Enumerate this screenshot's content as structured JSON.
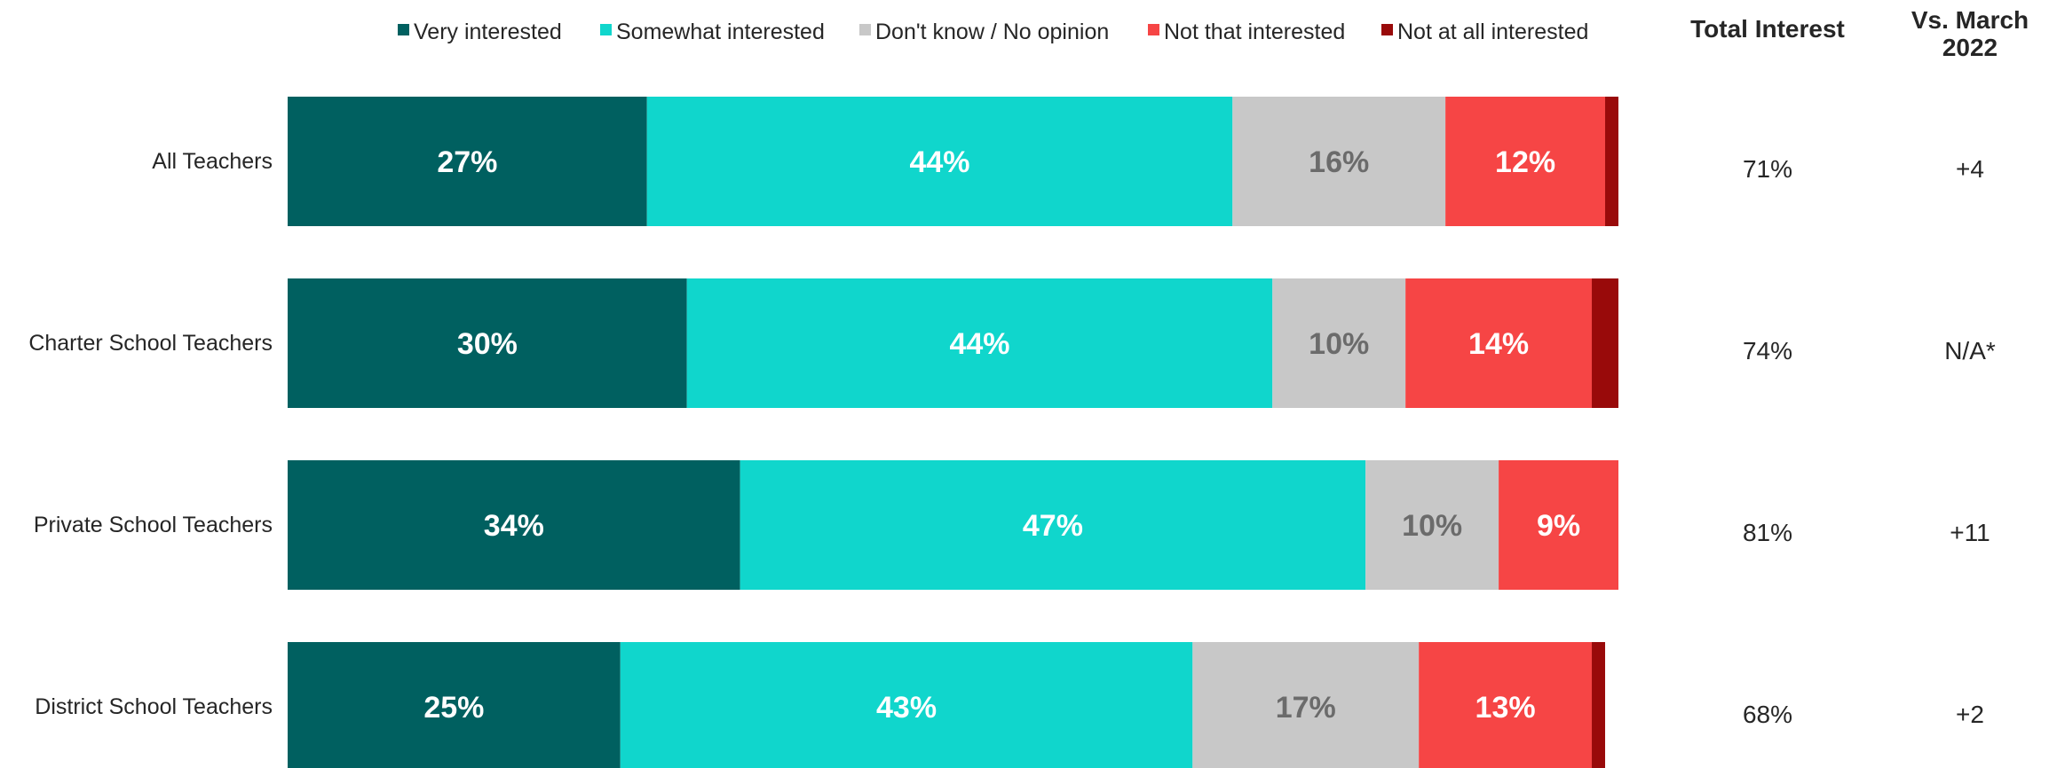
{
  "chart_data": {
    "type": "bar",
    "orientation": "horizontal",
    "stacked": true,
    "categories": [
      "All Teachers",
      "Charter School Teachers",
      "Private School Teachers",
      "District School Teachers"
    ],
    "series": [
      {
        "name": "Very interested",
        "color": "#006060",
        "values": [
          27,
          30,
          34,
          25
        ],
        "labels": [
          "27%",
          "30%",
          "34%",
          "25%"
        ],
        "label_color": "#ffffff"
      },
      {
        "name": "Somewhat interested",
        "color": "#10d6cc",
        "values": [
          44,
          44,
          47,
          43
        ],
        "labels": [
          "44%",
          "44%",
          "47%",
          "43%"
        ],
        "label_color": "#ffffff"
      },
      {
        "name": "Don't know / No opinion",
        "color": "#c8c8c8",
        "values": [
          16,
          10,
          10,
          17
        ],
        "labels": [
          "16%",
          "10%",
          "10%",
          "17%"
        ],
        "label_color": "#6b6b6b"
      },
      {
        "name": "Not that interested",
        "color": "#f64545",
        "values": [
          12,
          14,
          9,
          13
        ],
        "labels": [
          "12%",
          "14%",
          "9%",
          "13%"
        ],
        "label_color": "#ffffff"
      },
      {
        "name": "Not at all interested",
        "color": "#990a0a",
        "values": [
          1,
          2,
          0,
          1
        ],
        "labels": [
          "",
          "",
          "",
          ""
        ],
        "label_color": "#ffffff"
      }
    ],
    "xlim": [
      0,
      100
    ],
    "legend_position": "top",
    "grid": false,
    "side_columns": [
      {
        "header": "Total Interest",
        "values": [
          "71%",
          "74%",
          "81%",
          "68%"
        ]
      },
      {
        "header_lines": [
          "Vs. March",
          "2022"
        ],
        "values": [
          "+4",
          "N/A*",
          "+11",
          "+2"
        ]
      }
    ]
  }
}
